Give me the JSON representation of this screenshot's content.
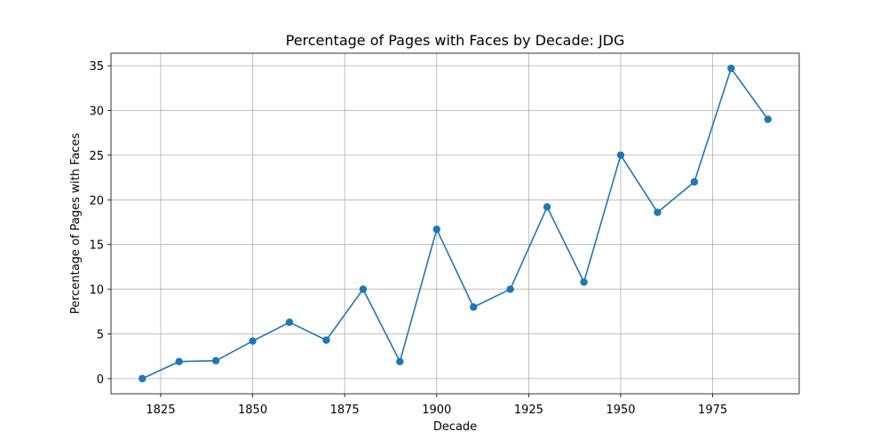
{
  "chart_data": {
    "type": "line",
    "title": "Percentage of Pages with Faces by Decade: JDG",
    "xlabel": "Decade",
    "ylabel": "Percentage of Pages with Faces",
    "x": [
      1820,
      1830,
      1840,
      1850,
      1860,
      1870,
      1880,
      1890,
      1900,
      1910,
      1920,
      1930,
      1940,
      1950,
      1960,
      1970,
      1980,
      1990
    ],
    "series": [
      {
        "values": [
          0.0,
          1.9,
          2.0,
          4.2,
          6.3,
          4.3,
          10.0,
          1.9,
          16.7,
          8.0,
          10.0,
          19.2,
          10.8,
          25.0,
          18.6,
          22.0,
          34.7,
          29.0
        ],
        "color": "#1f77b4",
        "marker": "circle"
      }
    ],
    "xlim": [
      1811.5,
      1998.5
    ],
    "ylim": [
      -1.7,
      36.4
    ],
    "xticks": [
      1825,
      1850,
      1875,
      1900,
      1925,
      1950,
      1975
    ],
    "yticks": [
      0,
      5,
      10,
      15,
      20,
      25,
      30,
      35
    ],
    "grid": true
  }
}
